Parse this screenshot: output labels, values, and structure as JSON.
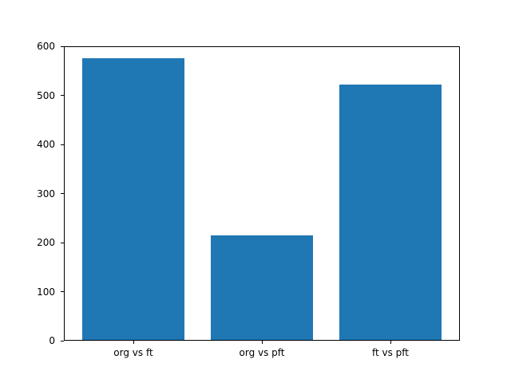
{
  "chart_data": {
    "type": "bar",
    "categories": [
      "org vs ft",
      "org vs pft",
      "ft vs pft"
    ],
    "values": [
      575,
      215,
      522
    ],
    "title": "",
    "xlabel": "",
    "ylabel": "",
    "ylim": [
      0,
      600
    ],
    "yticks": [
      0,
      100,
      200,
      300,
      400,
      500,
      600
    ],
    "bar_color": "#1f77b4",
    "background_color": "#ffffff",
    "axis_color": "#000000",
    "grid": false,
    "legend": "none",
    "bar_width_fraction": 0.8
  }
}
